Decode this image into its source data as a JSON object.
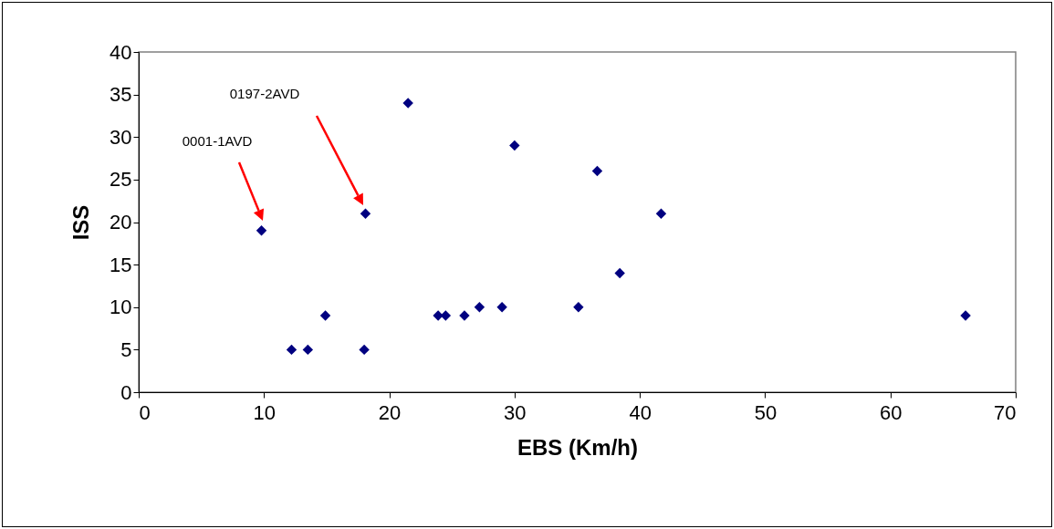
{
  "chart_data": {
    "type": "scatter",
    "xlabel": "EBS (Km/h)",
    "ylabel": "ISS",
    "x": [
      9.8,
      12.2,
      13.5,
      14.9,
      18.0,
      18.1,
      21.5,
      23.9,
      24.5,
      26.0,
      27.2,
      29.0,
      30.0,
      35.1,
      36.6,
      38.4,
      41.7,
      66.0
    ],
    "values": [
      19,
      5,
      5,
      9,
      5,
      21,
      34,
      9,
      9,
      9,
      10,
      10,
      29,
      10,
      26,
      14,
      21,
      9
    ],
    "color": "#000080",
    "marker": "diamond",
    "xlim": [
      0,
      70
    ],
    "xticks": [
      0,
      10,
      20,
      30,
      40,
      50,
      60,
      70
    ],
    "ylim": [
      0,
      40
    ],
    "yticks": [
      0,
      5,
      10,
      15,
      20,
      25,
      30,
      35,
      40
    ],
    "grid": false,
    "annotations": [
      "0001-1AVD",
      "0197-2AVD"
    ]
  }
}
